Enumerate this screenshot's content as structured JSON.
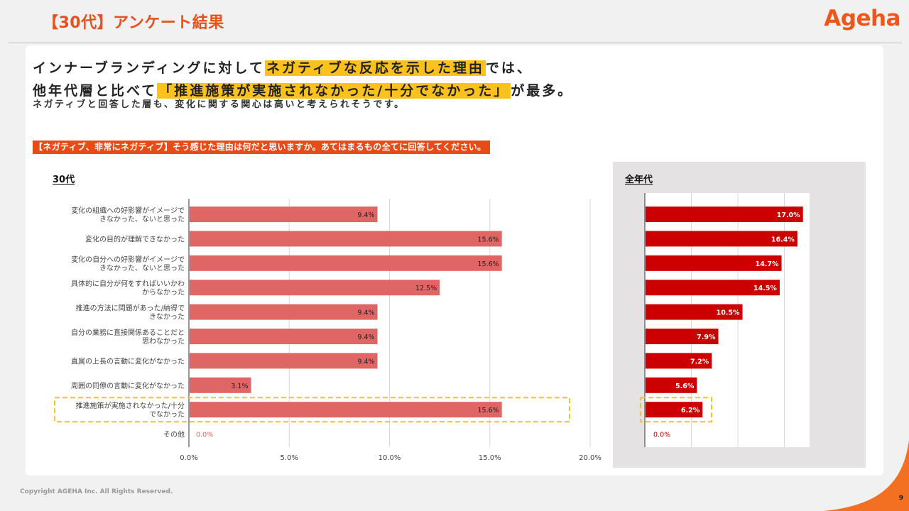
{
  "header": {
    "title": "【30代】アンケート結果",
    "logo": "Ageha"
  },
  "headline": {
    "line1_pre": "インナーブランディングに対して",
    "line1_hl": "ネガティブな反応を示した理由",
    "line1_post": "では、",
    "line2_pre": "他年代層と比べて",
    "line2_hl": "「推進施策が実施されなかった/十分でなかった」",
    "line2_post": "が最多。",
    "sub": "ネガティブと回答した層も、変化に関する関心は高いと考えられそうです。"
  },
  "question": "【ネガティブ、非常にネガティブ】そう感じた理由は何だと思いますか。あてはまるもの全てに回答してください。",
  "left_label": "30代",
  "right_label": "全年代",
  "chart_data": [
    {
      "type": "bar",
      "orientation": "horizontal",
      "title": "30代",
      "categories": [
        [
          "変化の組織への好影響がイメージで",
          "きなかった、ないと思った"
        ],
        [
          "変化の目的が理解できなかった"
        ],
        [
          "変化の自分への好影響がイメージで",
          "きなかった、ないと思った"
        ],
        [
          "具体的に自分が何をすればいいかわ",
          "からなかった"
        ],
        [
          "推進の方法に問題があった/納得で",
          "きなかった"
        ],
        [
          "自分の業務に直接関係あることだと",
          "思わなかった"
        ],
        [
          "直属の上長の言動に変化がなかった"
        ],
        [
          "周囲の同僚の言動に変化がなかった"
        ],
        [
          "推進施策が実施されなかった/十分",
          "でなかった"
        ],
        [
          "その他"
        ]
      ],
      "values": [
        9.4,
        15.6,
        15.6,
        12.5,
        9.4,
        9.4,
        9.4,
        3.1,
        15.6,
        0.0
      ],
      "value_labels": [
        "9.4%",
        "15.6%",
        "15.6%",
        "12.5%",
        "9.4%",
        "9.4%",
        "9.4%",
        "3.1%",
        "15.6%",
        "0.0%"
      ],
      "xlim": [
        0,
        20
      ],
      "xticks": [
        "0.0%",
        "5.0%",
        "10.0%",
        "15.0%",
        "20.0%"
      ],
      "grid": true,
      "highlight_index": 8,
      "color": "#e06666"
    },
    {
      "type": "bar",
      "orientation": "horizontal",
      "title": "全年代",
      "values": [
        17.0,
        16.4,
        14.7,
        14.5,
        10.5,
        7.9,
        7.2,
        5.6,
        6.2,
        0.0
      ],
      "value_labels": [
        "17.0%",
        "16.4%",
        "14.7%",
        "14.5%",
        "10.5%",
        "7.9%",
        "7.2%",
        "5.6%",
        "6.2%",
        "0.0%"
      ],
      "xlim": [
        0,
        20
      ],
      "grid": true,
      "highlight_index": 8,
      "color": "#cc0000"
    }
  ],
  "footer": {
    "copyright": "Copyright AGEHA Inc. All Rights Reserved.",
    "page": "9"
  },
  "colors": {
    "accent": "#e8501c",
    "highlight": "#fcc21b",
    "bar_30s": "#e06666",
    "bar_all": "#cc0000",
    "dash_box": "#f1c232"
  }
}
